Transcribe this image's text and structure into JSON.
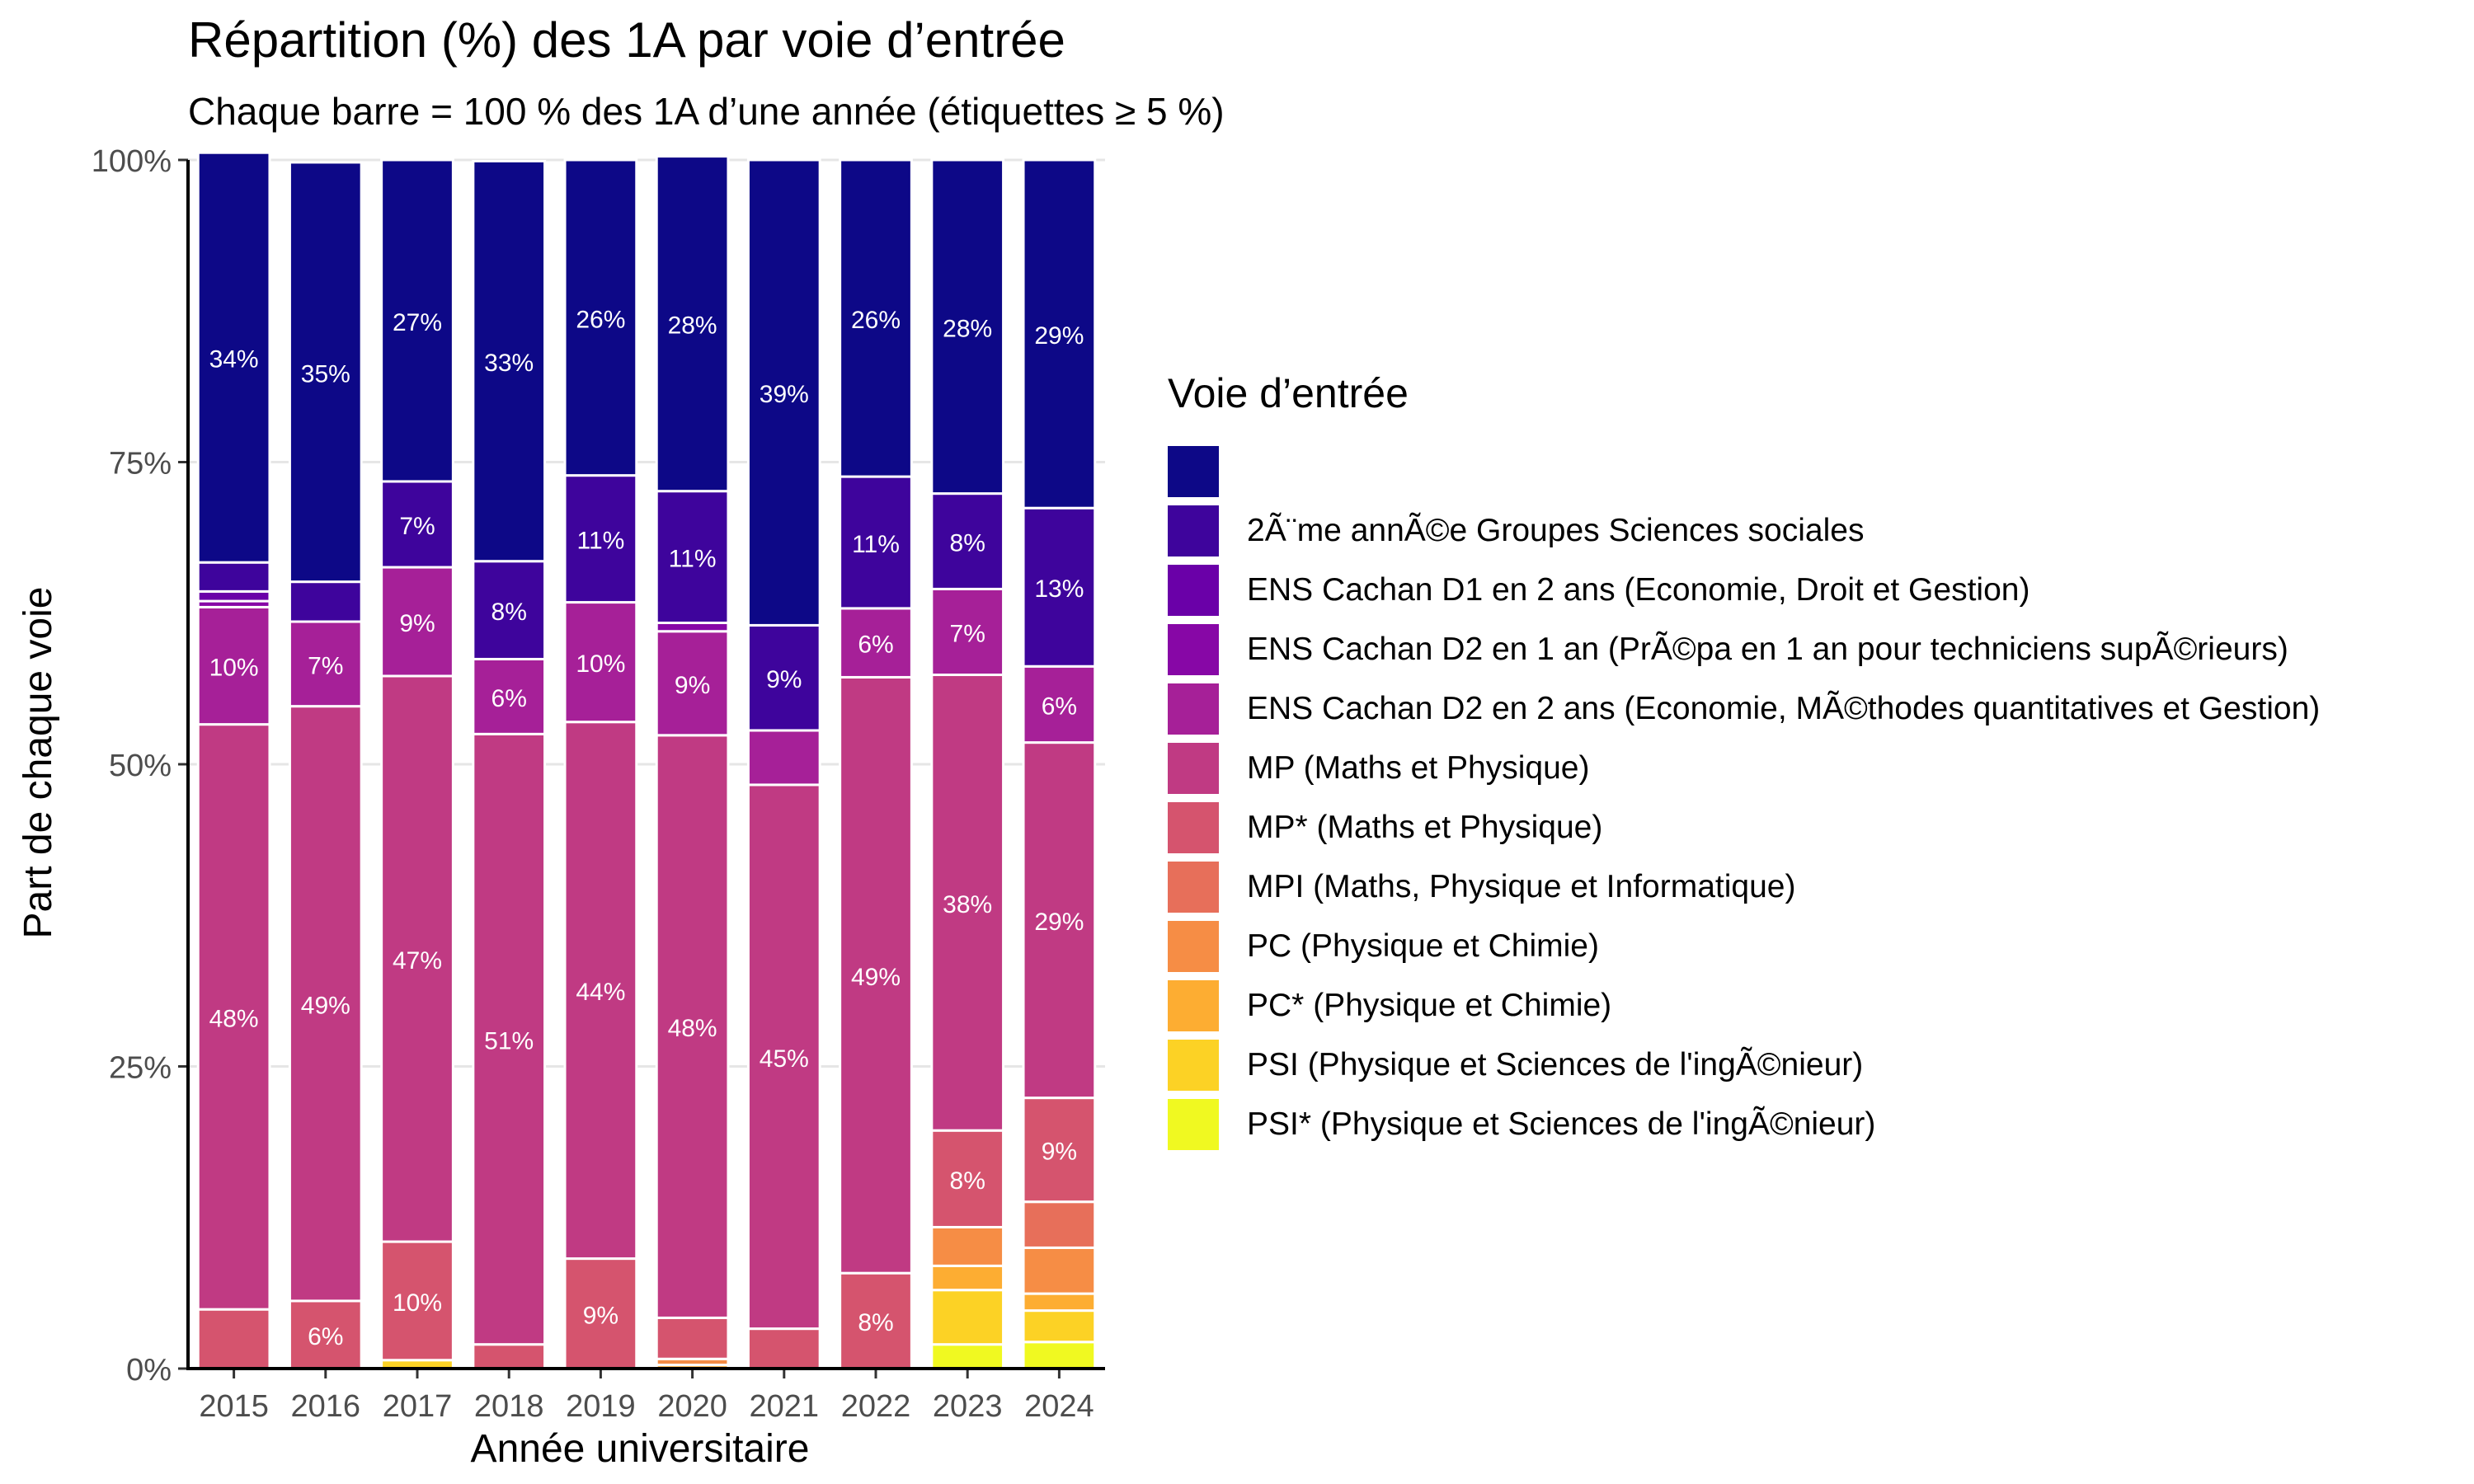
{
  "chart_data": {
    "type": "bar",
    "stacked": true,
    "title": "Répartition (%) des 1A par voie d’entrée",
    "subtitle": "Chaque barre = 100 % des 1A d’une année (étiquettes ≥ 5 %)",
    "xlabel": "Année universitaire",
    "ylabel": "Part de chaque voie",
    "ylim": [
      0,
      100
    ],
    "y_ticks": [
      "0%",
      "25%",
      "50%",
      "75%",
      "100%"
    ],
    "grid": true,
    "legend_title": "Voie d’entrée",
    "legend_position": "right",
    "categories": [
      "2015",
      "2016",
      "2017",
      "2018",
      "2019",
      "2020",
      "2021",
      "2022",
      "2023",
      "2024"
    ],
    "series": [
      {
        "name": "PSI* (Physique et Sciences de l'ingÃ©nieur)",
        "color": "#F0F921",
        "values": [
          0,
          0,
          0,
          0,
          0,
          0,
          0,
          0,
          2.0,
          2.2
        ]
      },
      {
        "name": "PSI (Physique et Sciences de l'ingÃ©nieur)",
        "color": "#FCD225",
        "values": [
          0,
          0,
          0.7,
          0,
          0,
          0,
          0,
          0,
          4.5,
          2.6
        ]
      },
      {
        "name": "PC* (Physique et Chimie)",
        "color": "#FDAD32",
        "values": [
          0,
          0,
          0,
          0,
          0,
          0.3,
          0,
          0,
          2.0,
          1.4
        ]
      },
      {
        "name": "PC (Physique et Chimie)",
        "color": "#F68D45",
        "values": [
          0,
          0,
          0,
          0,
          0,
          0.5,
          0,
          0,
          3.2,
          3.8
        ]
      },
      {
        "name": "MPI (Maths, Physique et Informatique)",
        "color": "#E76F5A",
        "values": [
          0,
          0,
          0,
          0,
          0,
          0,
          0,
          0,
          0,
          3.8
        ]
      },
      {
        "name": "MP* (Maths et Physique)",
        "color": "#D5546E",
        "values": [
          4.9,
          5.6,
          9.8,
          2.0,
          9.1,
          3.4,
          3.3,
          7.9,
          8.0,
          8.6
        ]
      },
      {
        "name": "MP (Maths et Physique)",
        "color": "#C03A83",
        "values": [
          48.4,
          49.2,
          46.8,
          50.5,
          44.4,
          48.2,
          45.0,
          49.3,
          37.7,
          29.4
        ]
      },
      {
        "name": "ENS Cachan D2 en 2 ans (Economie, MÃ©thodes quantitatives et Gestion)",
        "color": "#A62098",
        "values": [
          9.7,
          7.0,
          9.0,
          6.2,
          9.9,
          8.6,
          4.5,
          5.7,
          7.1,
          6.3
        ]
      },
      {
        "name": "ENS Cachan D2 en 1 an (PrÃ©pa en 1 an pour techniciens supÃ©rieurs)",
        "color": "#8707A6",
        "values": [
          0.5,
          0,
          0,
          0,
          0,
          0.7,
          0,
          0,
          0,
          0
        ]
      },
      {
        "name": "ENS Cachan D1 en 2 ans (Economie, Droit et Gestion)",
        "color": "#6A00A8",
        "values": [
          0.8,
          0,
          0,
          0,
          0,
          0,
          0,
          0,
          0,
          0
        ]
      },
      {
        "name": "2Ã¨me annÃ©e Groupes Sciences sociales",
        "color": "#3E049C",
        "values": [
          2.4,
          3.3,
          7.1,
          8.1,
          10.5,
          10.9,
          8.7,
          10.9,
          7.9,
          13.1
        ]
      },
      {
        "name": "",
        "color": "#0D0887",
        "values": [
          33.9,
          34.7,
          26.6,
          33.1,
          26.1,
          27.7,
          38.5,
          26.2,
          27.6,
          28.8
        ]
      }
    ]
  }
}
